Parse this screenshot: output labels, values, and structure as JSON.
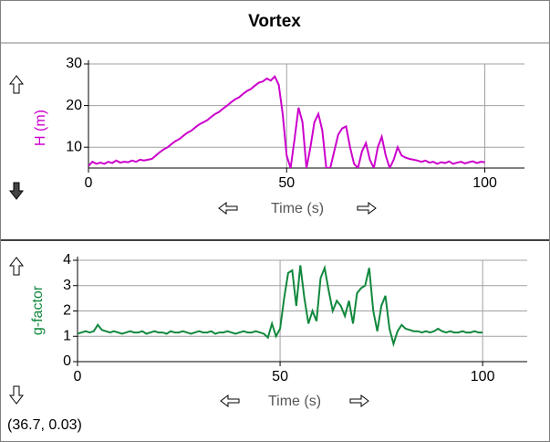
{
  "window_title": "Vortex",
  "status": "(36.7, 0.03)",
  "chart_data": [
    {
      "type": "line",
      "y_label": "H (m)",
      "x_label": "Time (s)",
      "color": "#cc00cc",
      "x": [
        0,
        1,
        2,
        3,
        4,
        5,
        6,
        7,
        8,
        9,
        10,
        11,
        12,
        13,
        14,
        15,
        16,
        17,
        18,
        19,
        20,
        21,
        22,
        23,
        24,
        25,
        26,
        27,
        28,
        29,
        30,
        31,
        32,
        33,
        34,
        35,
        36,
        37,
        38,
        39,
        40,
        41,
        42,
        43,
        44,
        45,
        46,
        47,
        48,
        49,
        50,
        51,
        52,
        53,
        54,
        55,
        56,
        57,
        58,
        59,
        60,
        61,
        62,
        63,
        64,
        65,
        66,
        67,
        68,
        69,
        70,
        71,
        72,
        73,
        74,
        75,
        76,
        77,
        78,
        79,
        80,
        81,
        82,
        83,
        84,
        85,
        86,
        87,
        88,
        89,
        90,
        91,
        92,
        93,
        94,
        95,
        96,
        97,
        98,
        99,
        100
      ],
      "values": [
        5.5,
        6.5,
        6,
        6.3,
        6,
        6.5,
        6.2,
        6.8,
        6.3,
        6.5,
        6.4,
        6.8,
        6.5,
        7,
        6.8,
        7,
        7.2,
        8,
        8.8,
        9.5,
        10,
        10.8,
        11.5,
        12,
        12.8,
        13.5,
        14,
        14.8,
        15.5,
        16,
        16.5,
        17.3,
        18,
        18.5,
        19.3,
        20,
        20.8,
        21.5,
        22,
        22.8,
        23.5,
        24,
        24.8,
        25.5,
        25.8,
        26.5,
        26,
        27,
        25,
        18,
        8,
        5,
        12,
        19.5,
        16,
        5,
        10,
        16,
        18,
        14,
        5,
        5,
        9,
        13,
        14.5,
        15,
        10,
        6,
        5,
        9,
        11,
        7,
        5,
        10,
        12.5,
        8,
        5,
        7,
        10,
        8,
        7.5,
        7.2,
        7,
        6.8,
        6.5,
        6.8,
        6.3,
        6.5,
        6,
        6.4,
        6.2,
        6.6,
        6,
        6.3,
        6.5,
        6.1,
        6.4,
        6.6,
        6.2,
        6.5,
        6.4
      ],
      "xlim": [
        0,
        110
      ],
      "xticks": [
        0,
        50,
        100
      ],
      "ylim": [
        5,
        30
      ],
      "yticks": [
        10,
        20,
        30
      ],
      "grid": true
    },
    {
      "type": "line",
      "y_label": "g-factor",
      "x_label": "Time (s)",
      "color": "#11883d",
      "x": [
        0,
        1,
        2,
        3,
        4,
        5,
        6,
        7,
        8,
        9,
        10,
        11,
        12,
        13,
        14,
        15,
        16,
        17,
        18,
        19,
        20,
        21,
        22,
        23,
        24,
        25,
        26,
        27,
        28,
        29,
        30,
        31,
        32,
        33,
        34,
        35,
        36,
        37,
        38,
        39,
        40,
        41,
        42,
        43,
        44,
        45,
        46,
        47,
        48,
        49,
        50,
        51,
        52,
        53,
        54,
        55,
        56,
        57,
        58,
        59,
        60,
        61,
        62,
        63,
        64,
        65,
        66,
        67,
        68,
        69,
        70,
        71,
        72,
        73,
        74,
        75,
        76,
        77,
        78,
        79,
        80,
        81,
        82,
        83,
        84,
        85,
        86,
        87,
        88,
        89,
        90,
        91,
        92,
        93,
        94,
        95,
        96,
        97,
        98,
        99,
        100
      ],
      "values": [
        1.1,
        1.15,
        1.2,
        1.15,
        1.2,
        1.45,
        1.25,
        1.2,
        1.15,
        1.2,
        1.15,
        1.1,
        1.15,
        1.2,
        1.15,
        1.15,
        1.2,
        1.1,
        1.15,
        1.2,
        1.15,
        1.15,
        1.1,
        1.2,
        1.15,
        1.15,
        1.2,
        1.15,
        1.1,
        1.15,
        1.2,
        1.15,
        1.15,
        1.2,
        1.1,
        1.15,
        1.15,
        1.2,
        1.15,
        1.1,
        1.15,
        1.2,
        1.15,
        1.15,
        1.2,
        1.15,
        1.1,
        0.95,
        1.5,
        1.0,
        1.3,
        2.5,
        3.5,
        3.6,
        2.2,
        3.8,
        2.5,
        1.5,
        2.0,
        1.6,
        3.3,
        3.7,
        2.8,
        2.0,
        2.4,
        2.2,
        1.8,
        2.4,
        1.5,
        2.7,
        2.9,
        3.0,
        3.7,
        2.0,
        1.2,
        2.2,
        2.6,
        1.3,
        0.7,
        1.2,
        1.45,
        1.3,
        1.25,
        1.2,
        1.2,
        1.15,
        1.2,
        1.15,
        1.2,
        1.3,
        1.2,
        1.15,
        1.2,
        1.15,
        1.15,
        1.2,
        1.15,
        1.15,
        1.2,
        1.15,
        1.15
      ],
      "xlim": [
        0,
        111
      ],
      "xticks": [
        0,
        50,
        100
      ],
      "ylim": [
        0,
        4
      ],
      "yticks": [
        0,
        1,
        2,
        3,
        4
      ],
      "grid": true
    }
  ]
}
